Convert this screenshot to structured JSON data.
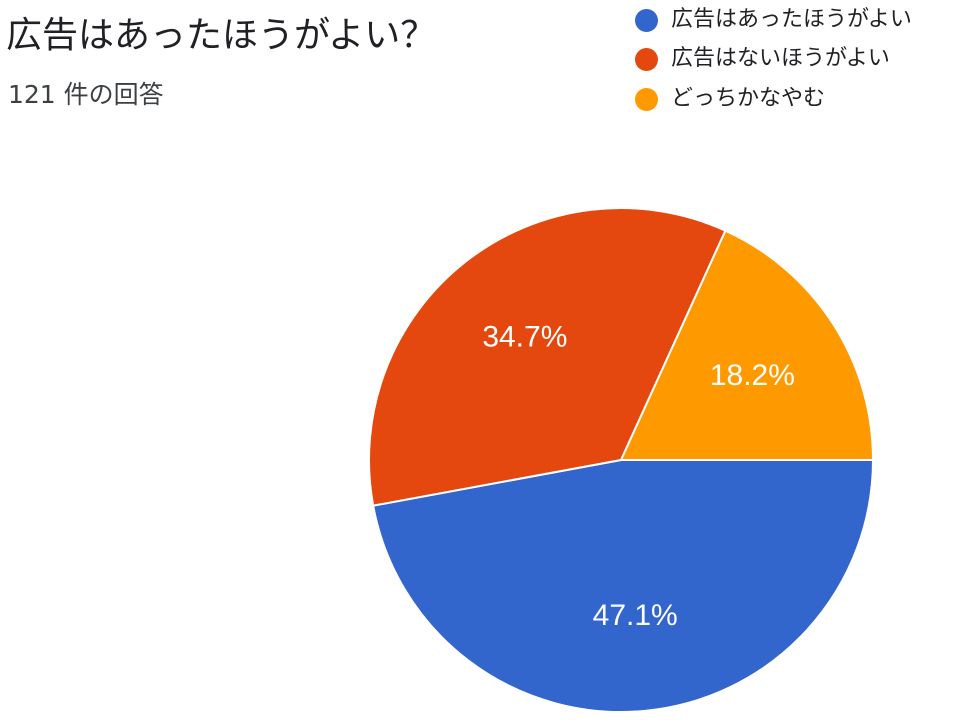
{
  "chart_data": {
    "type": "pie",
    "title": "広告はあったほうがよい？",
    "subtitle": "121 件の回答",
    "legend_position": "top-right",
    "series": [
      {
        "name": "広告はあったほうがよい",
        "value": 47.1,
        "label": "47.1%",
        "color": "#3366cc"
      },
      {
        "name": "広告はないほうがよい",
        "value": 34.7,
        "label": "34.7%",
        "color": "#e4480f"
      },
      {
        "name": "どっちかなやむ",
        "value": 18.2,
        "label": "18.2%",
        "color": "#ff9900"
      }
    ]
  }
}
